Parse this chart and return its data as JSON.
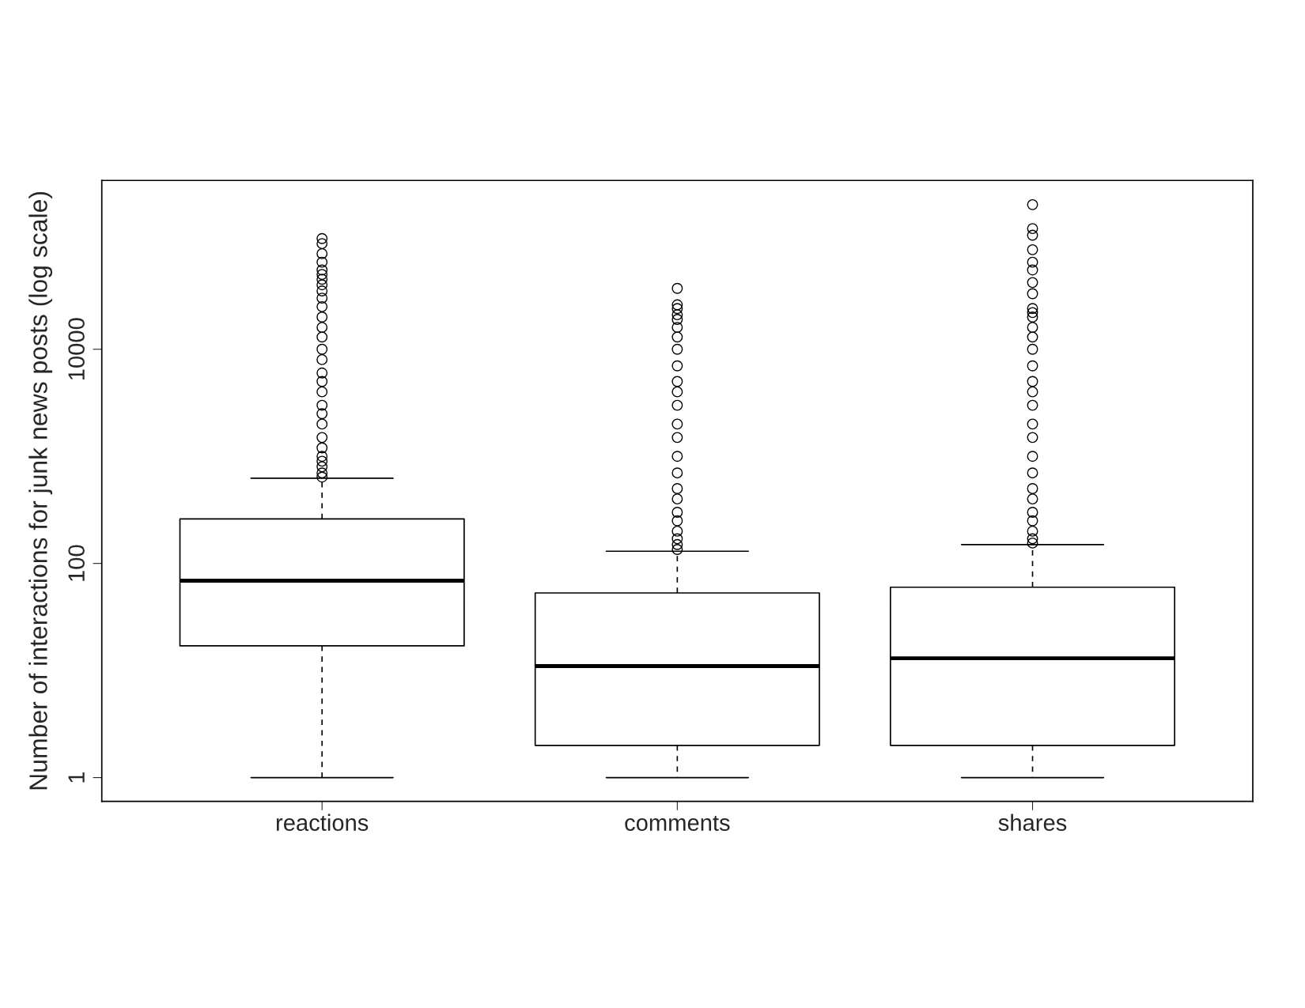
{
  "chart_data": {
    "type": "box",
    "ylabel": "Number of interactions for junk news posts (log scale)",
    "categories": [
      "reactions",
      "comments",
      "shares"
    ],
    "boxes": [
      {
        "low": 1,
        "q1": 17,
        "median": 69,
        "q3": 260,
        "high": 625,
        "outliers": [
          640,
          700,
          800,
          900,
          1000,
          1200,
          1500,
          2000,
          2500,
          3000,
          4000,
          5000,
          6000,
          8000,
          10000,
          13000,
          16000,
          20000,
          25000,
          30000,
          35000,
          40000,
          45000,
          50000,
          55000,
          65000,
          78000,
          97000,
          108000
        ]
      },
      {
        "low": 1,
        "q1": 2,
        "median": 11,
        "q3": 53,
        "high": 130,
        "outliers": [
          135,
          150,
          170,
          200,
          250,
          300,
          400,
          500,
          700,
          1000,
          1500,
          2000,
          3000,
          4000,
          5000,
          7000,
          10000,
          13000,
          16000,
          19000,
          21000,
          24000,
          26000,
          37000
        ]
      },
      {
        "low": 1,
        "q1": 2,
        "median": 13,
        "q3": 60,
        "high": 150,
        "outliers": [
          155,
          170,
          200,
          250,
          300,
          400,
          500,
          700,
          1000,
          1500,
          2000,
          3000,
          4000,
          5000,
          7000,
          10000,
          13000,
          16000,
          20000,
          22000,
          24000,
          33000,
          42000,
          55000,
          65000,
          85000,
          116000,
          134000,
          224000
        ]
      }
    ],
    "log": "y",
    "ylim": [
      0.6,
      377000
    ],
    "yticks": [
      1,
      100,
      10000
    ],
    "grid": false,
    "marker": "circle"
  }
}
